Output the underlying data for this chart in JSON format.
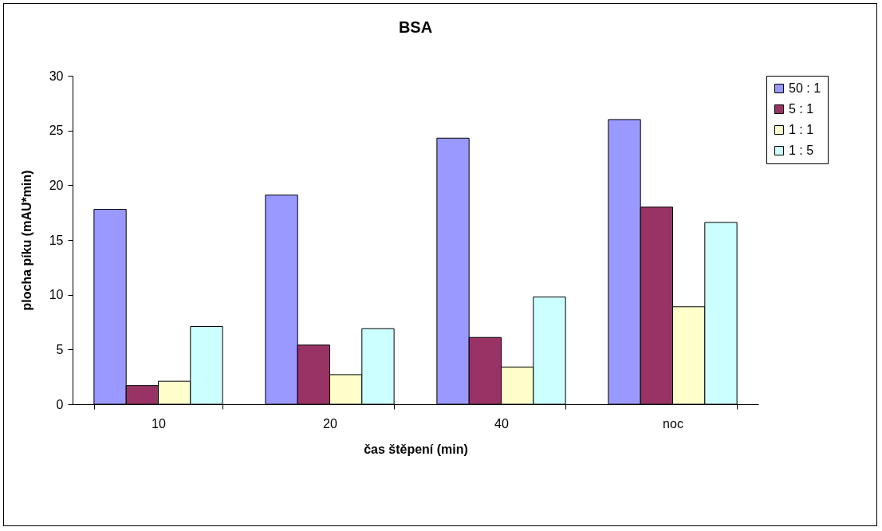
{
  "chart_data": {
    "type": "bar",
    "title": "BSA",
    "xlabel": "čas štěpení (min)",
    "ylabel": "plocha píku (mAU*min)",
    "categories": [
      "10",
      "20",
      "40",
      "noc"
    ],
    "series": [
      {
        "name": "50 : 1",
        "color": "#9999ff",
        "values": [
          17.8,
          19.1,
          24.3,
          26.0
        ]
      },
      {
        "name": "5 : 1",
        "color": "#993366",
        "values": [
          1.7,
          5.4,
          6.1,
          18.0
        ]
      },
      {
        "name": "1 : 1",
        "color": "#ffffcc",
        "values": [
          2.1,
          2.7,
          3.4,
          8.9
        ]
      },
      {
        "name": "1 : 5",
        "color": "#ccffff",
        "values": [
          7.1,
          6.9,
          9.8,
          16.6
        ]
      }
    ],
    "ylim": [
      0,
      30
    ],
    "yticks": [
      0,
      5,
      10,
      15,
      20,
      25,
      30
    ],
    "grid": false,
    "legend": "right"
  }
}
